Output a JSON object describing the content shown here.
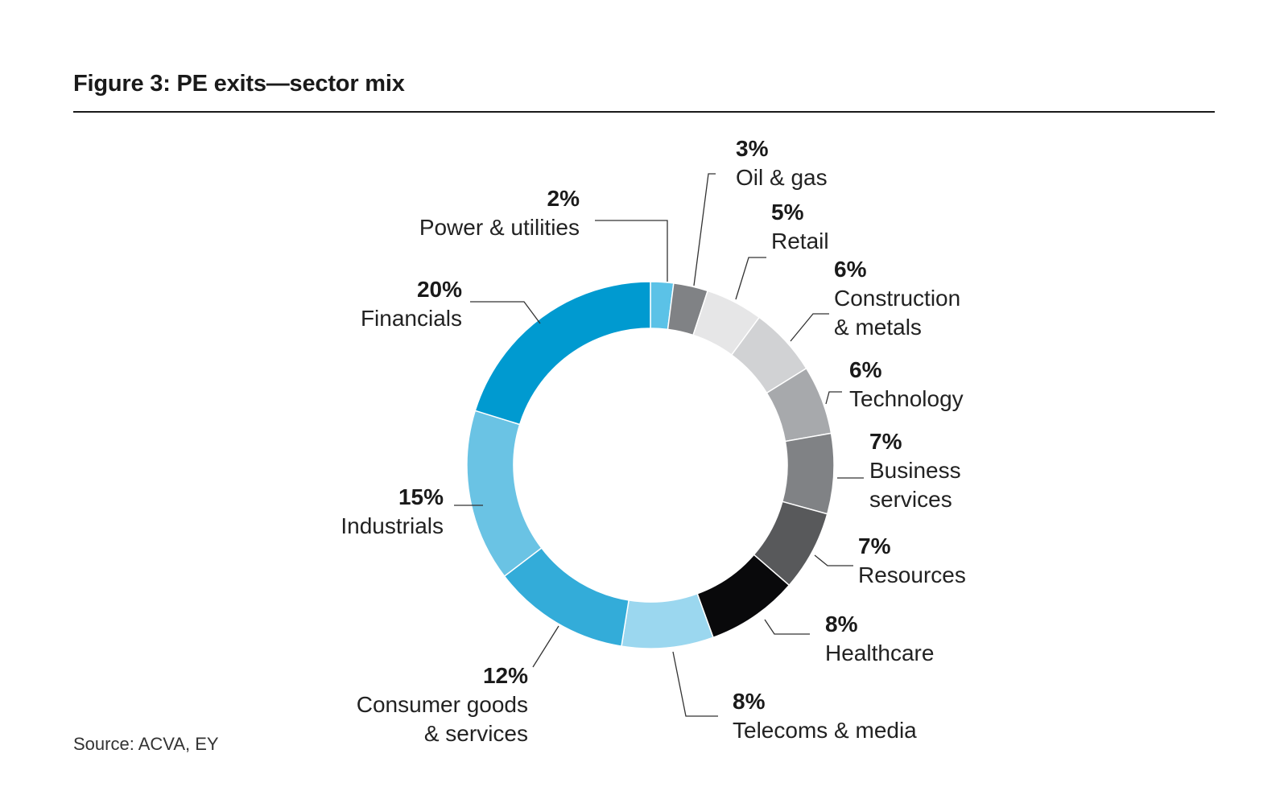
{
  "figure": {
    "title": "Figure 3: PE exits—sector mix",
    "source": "Source: ACVA, EY"
  },
  "chart_data": {
    "type": "pie",
    "style": "donut",
    "title": "Figure 3: PE exits—sector mix",
    "unit": "%",
    "slices": [
      {
        "label": "Power & utilities",
        "label_lines": [
          "Power & utilities"
        ],
        "value": 2,
        "value_label": "2%",
        "color": "#5bc2e7"
      },
      {
        "label": "Oil & gas",
        "label_lines": [
          "Oil & gas"
        ],
        "value": 3,
        "value_label": "3%",
        "color": "#808285"
      },
      {
        "label": "Retail",
        "label_lines": [
          "Retail"
        ],
        "value": 5,
        "value_label": "5%",
        "color": "#e6e6e7"
      },
      {
        "label": "Construction & metals",
        "label_lines": [
          "Construction",
          "& metals"
        ],
        "value": 6,
        "value_label": "6%",
        "color": "#d1d2d4"
      },
      {
        "label": "Technology",
        "label_lines": [
          "Technology"
        ],
        "value": 6,
        "value_label": "6%",
        "color": "#a7a9ac"
      },
      {
        "label": "Business services",
        "label_lines": [
          "Business",
          "services"
        ],
        "value": 7,
        "value_label": "7%",
        "color": "#808285"
      },
      {
        "label": "Resources",
        "label_lines": [
          "Resources"
        ],
        "value": 7,
        "value_label": "7%",
        "color": "#58595b"
      },
      {
        "label": "Healthcare",
        "label_lines": [
          "Healthcare"
        ],
        "value": 8,
        "value_label": "8%",
        "color": "#09090b"
      },
      {
        "label": "Telecoms & media",
        "label_lines": [
          "Telecoms & media"
        ],
        "value": 8,
        "value_label": "8%",
        "color": "#9bd7ef"
      },
      {
        "label": "Consumer goods & services",
        "label_lines": [
          "Consumer goods",
          "& services"
        ],
        "value": 12,
        "value_label": "12%",
        "color": "#33acd9"
      },
      {
        "label": "Industrials",
        "label_lines": [
          "Industrials"
        ],
        "value": 15,
        "value_label": "15%",
        "color": "#6ac3e4"
      },
      {
        "label": "Financials",
        "label_lines": [
          "Financials"
        ],
        "value": 20,
        "value_label": "20%",
        "color": "#009ad0"
      }
    ]
  }
}
